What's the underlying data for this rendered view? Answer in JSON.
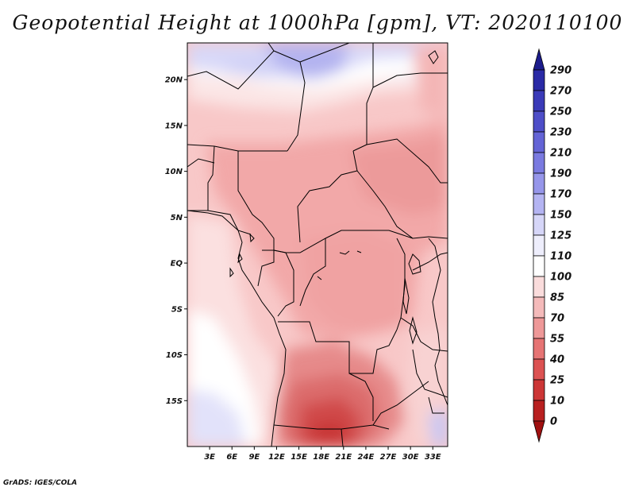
{
  "title": "Geopotential Height at 1000hPa [gpm], VT: 2020110100",
  "credit": "GrADS: IGES/COLA",
  "map": {
    "lon_range": [
      0,
      35
    ],
    "lat_range": [
      -20,
      24
    ],
    "lat_ticks": [
      {
        "value": 20,
        "label": "20N"
      },
      {
        "value": 15,
        "label": "15N"
      },
      {
        "value": 10,
        "label": "10N"
      },
      {
        "value": 5,
        "label": "5N"
      },
      {
        "value": 0,
        "label": "EQ"
      },
      {
        "value": -5,
        "label": "5S"
      },
      {
        "value": -10,
        "label": "10S"
      },
      {
        "value": -15,
        "label": "15S"
      }
    ],
    "lon_ticks": [
      {
        "value": 3,
        "label": "3E"
      },
      {
        "value": 6,
        "label": "6E"
      },
      {
        "value": 9,
        "label": "9E"
      },
      {
        "value": 12,
        "label": "12E"
      },
      {
        "value": 15,
        "label": "15E"
      },
      {
        "value": 18,
        "label": "18E"
      },
      {
        "value": 21,
        "label": "21E"
      },
      {
        "value": 24,
        "label": "24E"
      },
      {
        "value": 27,
        "label": "27E"
      },
      {
        "value": 30,
        "label": "30E"
      },
      {
        "value": 33,
        "label": "33E"
      }
    ]
  },
  "colorbar": {
    "levels": [
      "290",
      "270",
      "250",
      "230",
      "210",
      "190",
      "170",
      "150",
      "125",
      "110",
      "100",
      "85",
      "70",
      "55",
      "40",
      "25",
      "10",
      "0"
    ],
    "colors": [
      "#1c1c8c",
      "#2a2aa6",
      "#3a3ab8",
      "#4e4ec8",
      "#6464d6",
      "#7a7ae0",
      "#9696ea",
      "#b4b4f2",
      "#d6d6f8",
      "#eeeefc",
      "#ffffff",
      "#fadcdc",
      "#f4baba",
      "#ee9898",
      "#e67474",
      "#dc5252",
      "#cc3636",
      "#b82020",
      "#a01010"
    ]
  }
}
